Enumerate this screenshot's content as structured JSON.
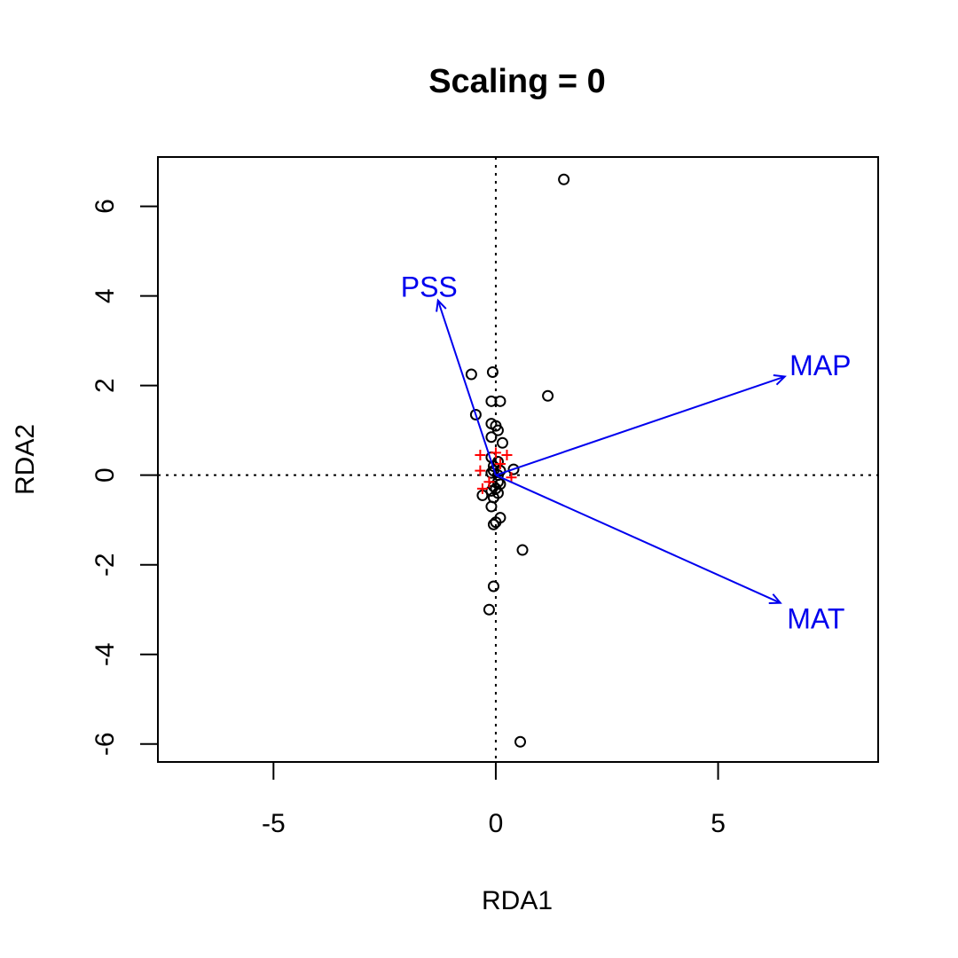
{
  "chart_data": {
    "type": "scatter",
    "title": "Scaling = 0",
    "xlabel": "RDA1",
    "ylabel": "RDA2",
    "xlim": [
      -7.6,
      8.6
    ],
    "ylim": [
      -6.4,
      7.1
    ],
    "xticks": [
      -5,
      0,
      5
    ],
    "xtick_labels": [
      "-5",
      "0",
      "5"
    ],
    "yticks": [
      -6,
      -4,
      -2,
      0,
      2,
      4,
      6
    ],
    "ytick_labels": [
      "-6",
      "-4",
      "-2",
      "0",
      "2",
      "4",
      "6"
    ],
    "reference_lines": {
      "x": 0,
      "y": 0,
      "style": "dotted"
    },
    "site_points": [
      [
        1.53,
        6.6
      ],
      [
        1.17,
        1.77
      ],
      [
        -0.55,
        2.25
      ],
      [
        -0.07,
        2.3
      ],
      [
        -0.45,
        1.35
      ],
      [
        -0.1,
        1.65
      ],
      [
        0.1,
        1.65
      ],
      [
        -0.1,
        1.15
      ],
      [
        0.05,
        1.0
      ],
      [
        0.0,
        1.1
      ],
      [
        0.15,
        0.72
      ],
      [
        -0.1,
        0.85
      ],
      [
        0.4,
        0.13
      ],
      [
        0.6,
        -1.67
      ],
      [
        -0.05,
        -2.48
      ],
      [
        -0.15,
        -3.0
      ],
      [
        0.55,
        -5.95
      ],
      [
        0.1,
        -0.95
      ],
      [
        0.0,
        -1.05
      ],
      [
        -0.05,
        -1.1
      ],
      [
        -0.3,
        -0.45
      ],
      [
        -0.1,
        -0.7
      ],
      [
        -0.05,
        -0.5
      ],
      [
        0.05,
        -0.4
      ],
      [
        -0.05,
        -0.25
      ],
      [
        0.05,
        -0.15
      ],
      [
        -0.1,
        0.05
      ],
      [
        0.1,
        0.1
      ],
      [
        -0.05,
        0.2
      ],
      [
        0.05,
        0.3
      ],
      [
        -0.1,
        0.4
      ],
      [
        0.0,
        -0.3
      ],
      [
        0.1,
        -0.2
      ],
      [
        -0.1,
        -0.35
      ],
      [
        0.05,
        0.0
      ],
      [
        -0.05,
        0.1
      ]
    ],
    "species_points": [
      [
        -0.35,
        0.45
      ],
      [
        -0.35,
        0.1
      ],
      [
        0.25,
        0.45
      ],
      [
        0.35,
        -0.05
      ],
      [
        -0.3,
        -0.3
      ],
      [
        0.1,
        0.25
      ],
      [
        -0.15,
        -0.15
      ],
      [
        0.0,
        0.5
      ]
    ],
    "arrows": [
      {
        "name": "PSS",
        "x": -1.3,
        "y": 3.9,
        "label_pos": [
          -1.5,
          4.2
        ]
      },
      {
        "name": "MAP",
        "x": 6.5,
        "y": 2.2,
        "label_pos": [
          7.3,
          2.45
        ]
      },
      {
        "name": "MAT",
        "x": 6.4,
        "y": -2.85,
        "label_pos": [
          7.2,
          -3.2
        ]
      }
    ],
    "colors": {
      "sites": "#000000",
      "species": "#ff0000",
      "arrows": "#0000ee",
      "axes": "#000000"
    },
    "grid": false,
    "legend": "none"
  }
}
